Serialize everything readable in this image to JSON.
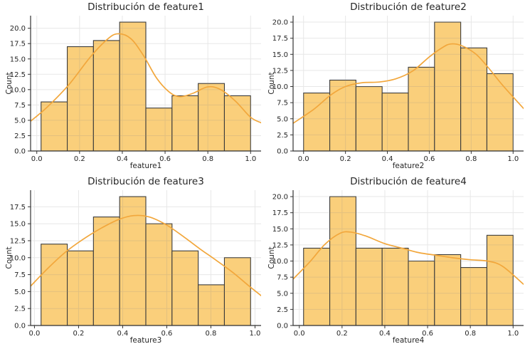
{
  "figure": {
    "ylabel": "Count",
    "style": {
      "background": "#ffffff",
      "bar_fill": "#FACF7B",
      "bar_edge": "#3B3B3B",
      "kde_color": "#F2A73C",
      "grid_color": "#8a8a8a",
      "spine_color": "#333333",
      "tick_color": "#333333",
      "text_color": "#262626"
    }
  },
  "chart_data": [
    {
      "type": "histogram+kde",
      "title": "Distribución de feature1",
      "xlabel": "feature1",
      "ylabel": "Count",
      "bin_start": 0.02,
      "bin_end": 1.0,
      "counts": [
        8,
        17,
        18,
        21,
        7,
        9,
        11,
        9
      ],
      "kde": [
        [
          -0.029,
          4.85
        ],
        [
          0.05,
          7.2
        ],
        [
          0.15,
          10.8
        ],
        [
          0.25,
          15.3
        ],
        [
          0.33,
          18.2
        ],
        [
          0.38,
          19.1
        ],
        [
          0.44,
          18.3
        ],
        [
          0.5,
          15.5
        ],
        [
          0.56,
          11.9
        ],
        [
          0.62,
          9.6
        ],
        [
          0.67,
          8.85
        ],
        [
          0.73,
          9.4
        ],
        [
          0.8,
          10.45
        ],
        [
          0.86,
          10.0
        ],
        [
          0.93,
          8.1
        ],
        [
          1.0,
          5.5
        ],
        [
          1.049,
          4.6
        ]
      ],
      "xlim": [
        -0.029,
        1.049
      ],
      "ylim": [
        0,
        22.05
      ],
      "xticks": [
        0.0,
        0.2,
        0.4,
        0.6,
        0.8,
        1.0
      ],
      "yticks": [
        0.0,
        2.5,
        5.0,
        7.5,
        10.0,
        12.5,
        15.0,
        17.5,
        20.0
      ],
      "grid": true,
      "legend": "none"
    },
    {
      "type": "histogram+kde",
      "title": "Distribución de feature2",
      "xlabel": "feature2",
      "ylabel": "Count",
      "bin_start": 0.0,
      "bin_end": 1.0,
      "counts": [
        9,
        11,
        10,
        9,
        13,
        20,
        16,
        12
      ],
      "kde": [
        [
          -0.05,
          4.3
        ],
        [
          0.05,
          6.5
        ],
        [
          0.13,
          8.7
        ],
        [
          0.2,
          10.0
        ],
        [
          0.28,
          10.6
        ],
        [
          0.36,
          10.7
        ],
        [
          0.44,
          11.2
        ],
        [
          0.52,
          12.4
        ],
        [
          0.6,
          14.6
        ],
        [
          0.66,
          16.0
        ],
        [
          0.7,
          16.6
        ],
        [
          0.75,
          16.4
        ],
        [
          0.82,
          15.1
        ],
        [
          0.88,
          13.0
        ],
        [
          0.95,
          10.2
        ],
        [
          1.05,
          6.6
        ]
      ],
      "xlim": [
        -0.05,
        1.05
      ],
      "ylim": [
        0,
        21.0
      ],
      "xticks": [
        0.0,
        0.2,
        0.4,
        0.6,
        0.8,
        1.0
      ],
      "yticks": [
        0.0,
        2.5,
        5.0,
        7.5,
        10.0,
        12.5,
        15.0,
        17.5,
        20.0
      ],
      "grid": true,
      "legend": "none"
    },
    {
      "type": "histogram+kde",
      "title": "Distribución de feature3",
      "xlabel": "feature3",
      "ylabel": "Count",
      "bin_start": 0.03,
      "bin_end": 0.98,
      "counts": [
        12,
        11,
        16,
        19,
        15,
        11,
        6,
        10
      ],
      "kde": [
        [
          -0.0175,
          5.8
        ],
        [
          0.06,
          8.4
        ],
        [
          0.14,
          10.8
        ],
        [
          0.22,
          12.7
        ],
        [
          0.3,
          14.3
        ],
        [
          0.38,
          15.6
        ],
        [
          0.45,
          16.2
        ],
        [
          0.52,
          16.0
        ],
        [
          0.6,
          14.8
        ],
        [
          0.68,
          13.0
        ],
        [
          0.75,
          11.3
        ],
        [
          0.82,
          9.7
        ],
        [
          0.9,
          7.8
        ],
        [
          0.97,
          5.9
        ],
        [
          1.0275,
          4.4
        ]
      ],
      "xlim": [
        -0.0175,
        1.0275
      ],
      "ylim": [
        0,
        19.95
      ],
      "xticks": [
        0.0,
        0.2,
        0.4,
        0.6,
        0.8,
        1.0
      ],
      "yticks": [
        0.0,
        2.5,
        5.0,
        7.5,
        10.0,
        12.5,
        15.0,
        17.5
      ],
      "grid": true,
      "legend": "none"
    },
    {
      "type": "histogram+kde",
      "title": "Distribución de feature4",
      "xlabel": "feature4",
      "ylabel": "Count",
      "bin_start": 0.02,
      "bin_end": 1.0,
      "counts": [
        12,
        20,
        12,
        12,
        10,
        11,
        9,
        14
      ],
      "kde": [
        [
          -0.029,
          7.2
        ],
        [
          0.05,
          9.9
        ],
        [
          0.12,
          12.6
        ],
        [
          0.19,
          14.3
        ],
        [
          0.24,
          14.5
        ],
        [
          0.31,
          13.9
        ],
        [
          0.4,
          12.7
        ],
        [
          0.48,
          12.0
        ],
        [
          0.56,
          11.3
        ],
        [
          0.64,
          10.9
        ],
        [
          0.72,
          10.5
        ],
        [
          0.8,
          10.2
        ],
        [
          0.88,
          10.0
        ],
        [
          0.95,
          9.2
        ],
        [
          1.049,
          6.4
        ]
      ],
      "xlim": [
        -0.029,
        1.049
      ],
      "ylim": [
        0,
        21.0
      ],
      "xticks": [
        0.0,
        0.2,
        0.4,
        0.6,
        0.8,
        1.0
      ],
      "yticks": [
        0.0,
        2.5,
        5.0,
        7.5,
        10.0,
        12.5,
        15.0,
        17.5,
        20.0
      ],
      "grid": true,
      "legend": "none"
    }
  ]
}
